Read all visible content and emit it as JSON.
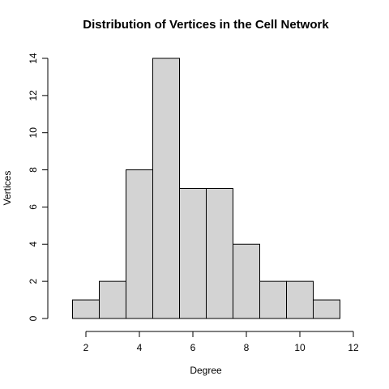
{
  "chart_data": {
    "type": "bar",
    "title": "Distribution of Vertices in the Cell Network",
    "xlabel": "Degree",
    "ylabel": "Vertices",
    "bins": [
      {
        "from": 1.5,
        "to": 2.5,
        "value": 1
      },
      {
        "from": 2.5,
        "to": 3.5,
        "value": 2
      },
      {
        "from": 3.5,
        "to": 4.5,
        "value": 8
      },
      {
        "from": 4.5,
        "to": 5.5,
        "value": 14
      },
      {
        "from": 5.5,
        "to": 6.5,
        "value": 7
      },
      {
        "from": 6.5,
        "to": 7.5,
        "value": 7
      },
      {
        "from": 7.5,
        "to": 8.5,
        "value": 4
      },
      {
        "from": 8.5,
        "to": 9.5,
        "value": 2
      },
      {
        "from": 9.5,
        "to": 10.5,
        "value": 2
      },
      {
        "from": 10.5,
        "to": 11.5,
        "value": 1
      }
    ],
    "xlim": [
      0.8,
      12
    ],
    "ylim": [
      0,
      14
    ],
    "x_ticks": [
      "2",
      "4",
      "6",
      "8",
      "10",
      "12"
    ],
    "y_ticks": [
      "0",
      "2",
      "4",
      "6",
      "8",
      "10",
      "12",
      "14"
    ],
    "grid": false,
    "bar_color": "#d3d3d3",
    "edge_color": "#000000"
  }
}
